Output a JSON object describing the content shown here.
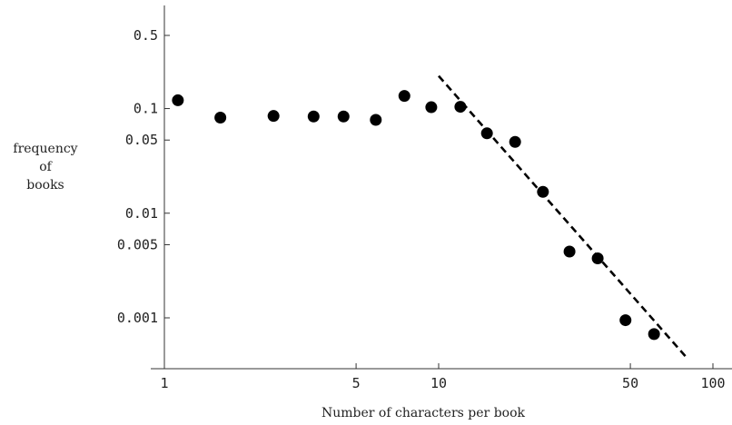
{
  "chart_data": {
    "type": "scatter",
    "xlabel": "Number of characters per book",
    "ylabel_lines": [
      "frequency",
      "of",
      "books"
    ],
    "x_scale": "log",
    "y_scale": "log",
    "xlim": [
      1,
      105
    ],
    "ylim": [
      0.0004,
      1.1
    ],
    "x_ticks": [
      {
        "value": 1,
        "label": "1"
      },
      {
        "value": 5,
        "label": "5"
      },
      {
        "value": 10,
        "label": "10"
      },
      {
        "value": 50,
        "label": "50"
      },
      {
        "value": 100,
        "label": "100"
      }
    ],
    "y_ticks": [
      {
        "value": 0.5,
        "label": "0.5"
      },
      {
        "value": 0.1,
        "label": "0.1"
      },
      {
        "value": 0.05,
        "label": "0.05"
      },
      {
        "value": 0.01,
        "label": "0.01"
      },
      {
        "value": 0.005,
        "label": "0.005"
      },
      {
        "value": 0.001,
        "label": "0.001"
      }
    ],
    "points": [
      {
        "x": 1.12,
        "y": 0.12
      },
      {
        "x": 1.6,
        "y": 0.082
      },
      {
        "x": 2.5,
        "y": 0.085
      },
      {
        "x": 3.5,
        "y": 0.084
      },
      {
        "x": 4.5,
        "y": 0.084
      },
      {
        "x": 5.9,
        "y": 0.078
      },
      {
        "x": 7.5,
        "y": 0.132
      },
      {
        "x": 9.4,
        "y": 0.103
      },
      {
        "x": 12,
        "y": 0.104
      },
      {
        "x": 15,
        "y": 0.058
      },
      {
        "x": 19,
        "y": 0.048
      },
      {
        "x": 24,
        "y": 0.016
      },
      {
        "x": 30,
        "y": 0.0043
      },
      {
        "x": 38,
        "y": 0.0037
      },
      {
        "x": 48,
        "y": 0.00095
      },
      {
        "x": 61,
        "y": 0.0007
      }
    ],
    "fit_line": {
      "style": "dashed",
      "from": {
        "x": 10,
        "y": 0.205
      },
      "to": {
        "x": 80,
        "y": 0.00042
      }
    }
  }
}
